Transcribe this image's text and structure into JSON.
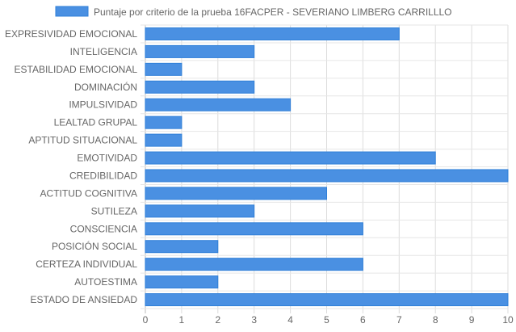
{
  "chart_data": {
    "type": "bar",
    "orientation": "horizontal",
    "title": "",
    "categories": [
      "EXPRESIVIDAD EMOCIONAL",
      "INTELIGENCIA",
      "ESTABILIDAD EMOCIONAL",
      "DOMINACIÓN",
      "IMPULSIVIDAD",
      "LEALTAD GRUPAL",
      "APTITUD SITUACIONAL",
      "EMOTIVIDAD",
      "CREDIBILIDAD",
      "ACTITUD COGNITIVA",
      "SUTILEZA",
      "CONSCIENCIA",
      "POSICIÓN SOCIAL",
      "CERTEZA INDIVIDUAL",
      "AUTOESTIMA",
      "ESTADO DE ANSIEDAD"
    ],
    "series": [
      {
        "name": "Puntaje por criterio de la prueba 16FACPER - SEVERIANO LIMBERG CARRILLLO",
        "values": [
          7,
          3,
          1,
          3,
          4,
          1,
          1,
          8,
          10,
          5,
          3,
          6,
          2,
          6,
          2,
          10
        ],
        "color": "#4a90e2",
        "border_color": "#2f7fd8"
      }
    ],
    "xlim": [
      0,
      10
    ],
    "x_ticks": [
      "0",
      "1",
      "2",
      "3",
      "4",
      "5",
      "6",
      "7",
      "8",
      "9",
      "10"
    ],
    "xlabel": "",
    "ylabel": "",
    "grid": true,
    "legend_position": "top"
  }
}
